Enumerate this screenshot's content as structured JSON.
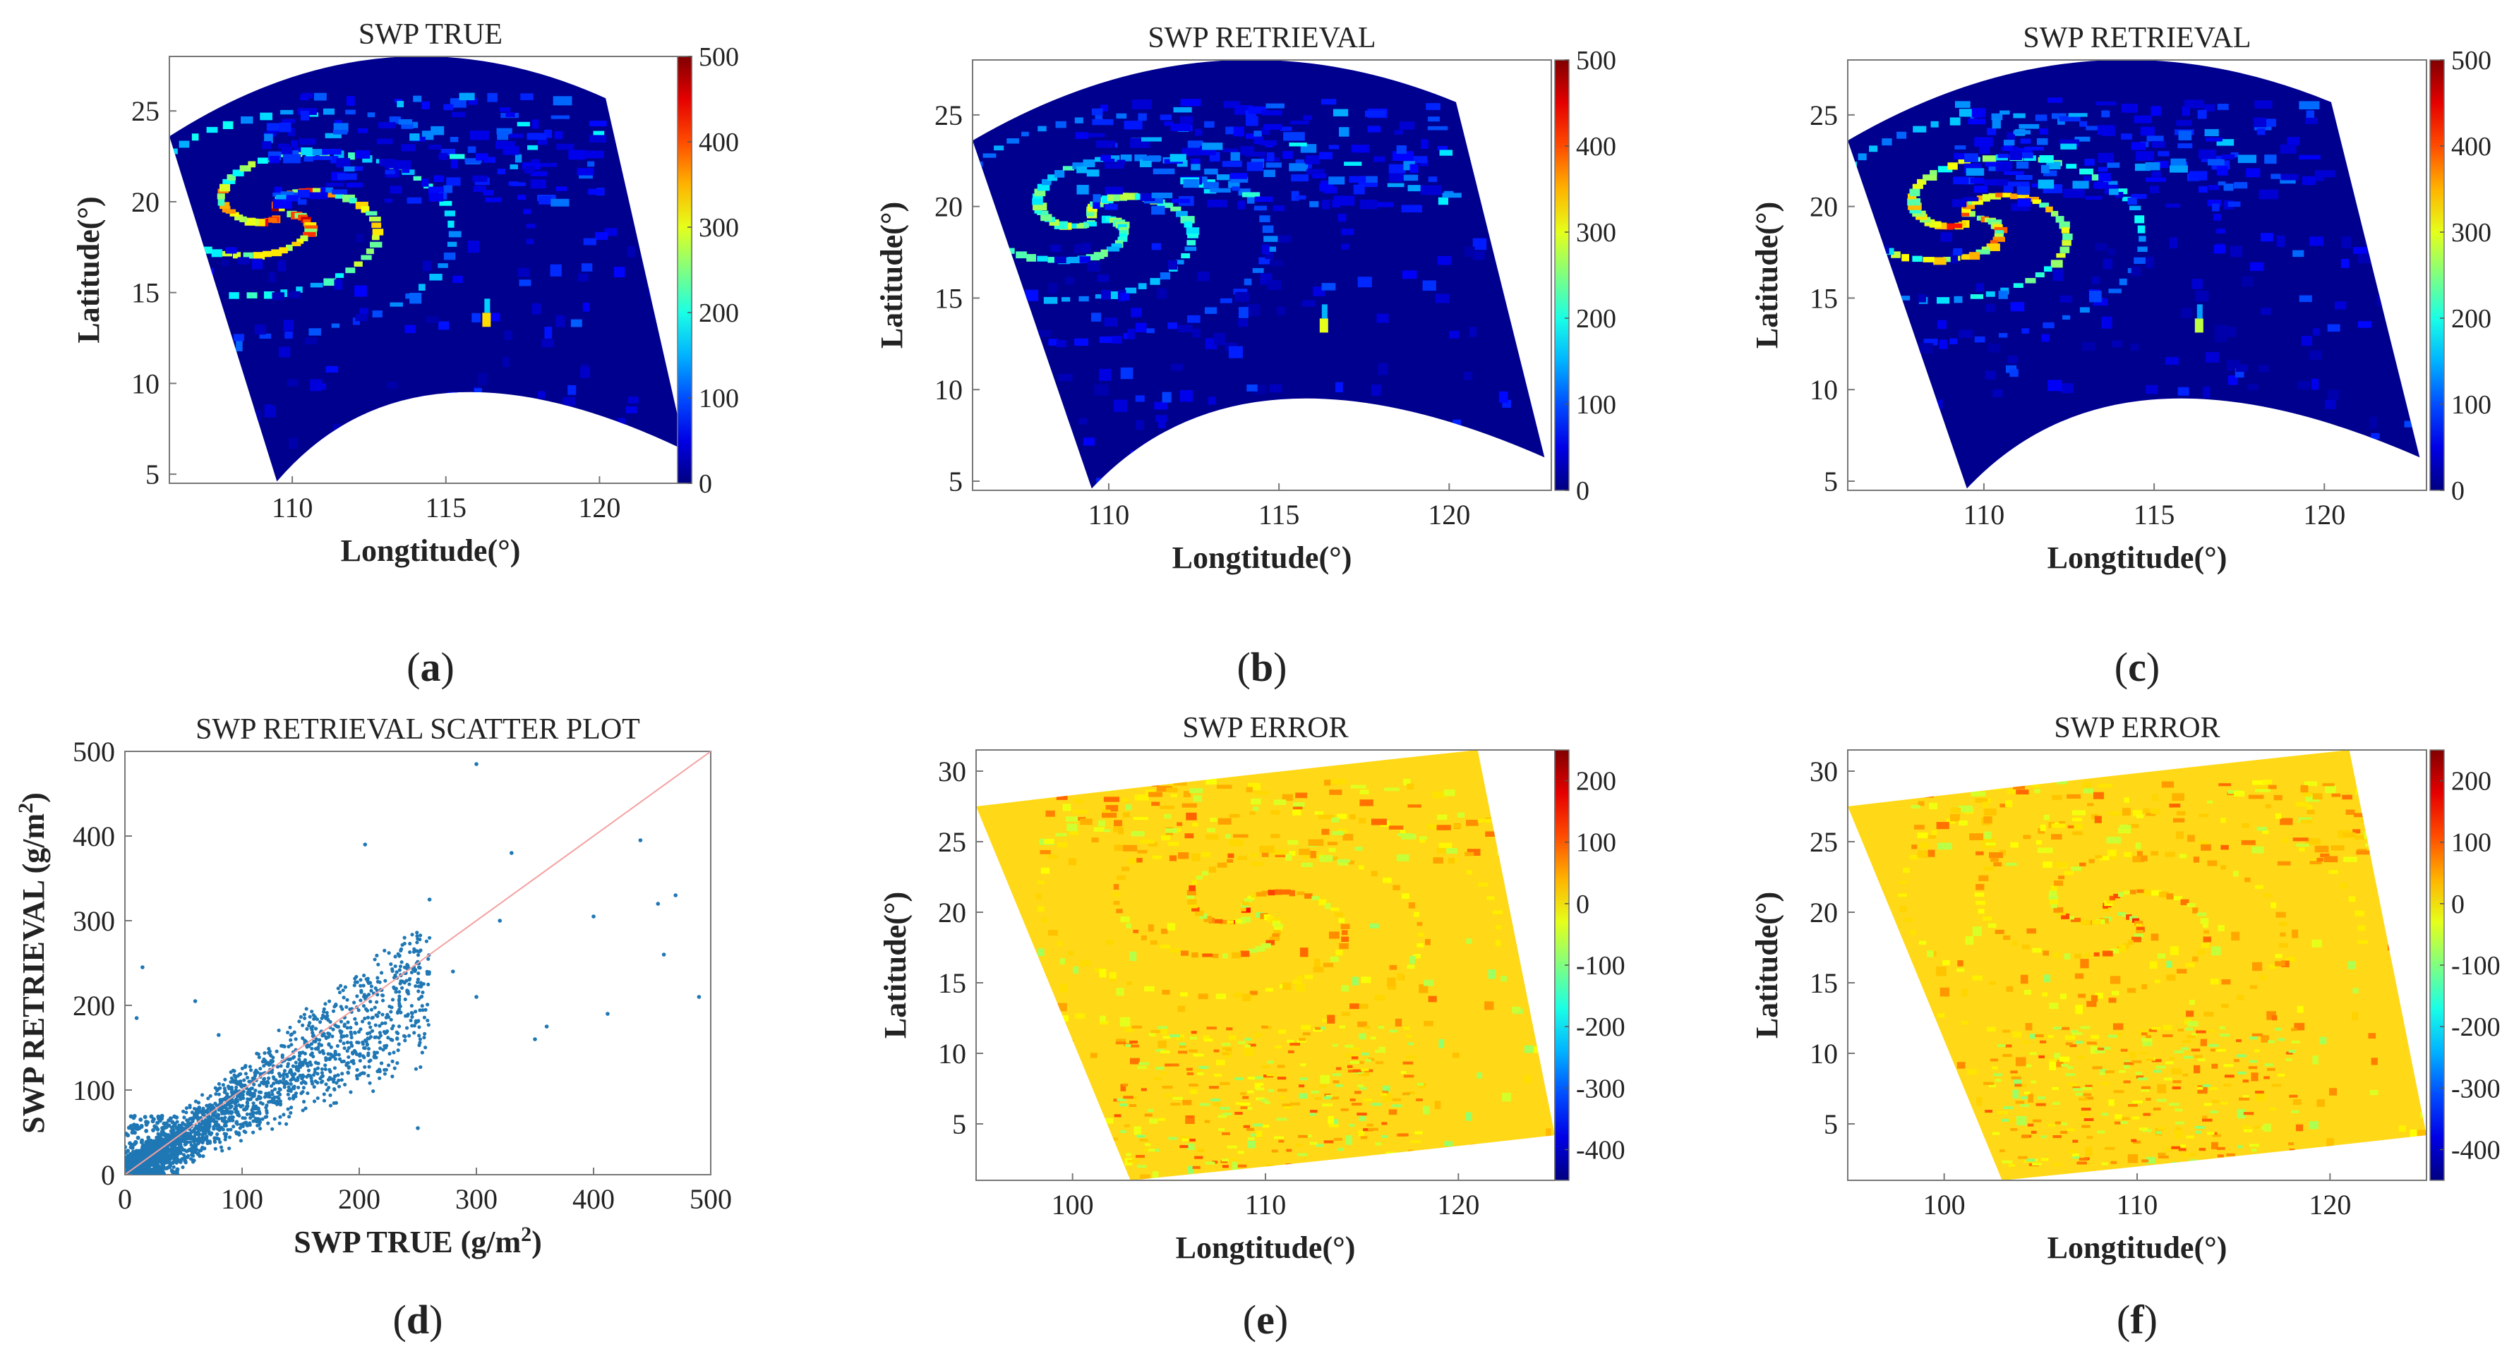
{
  "figure": {
    "panels": [
      {
        "id": "a",
        "label": "a",
        "title": "SWP TRUE",
        "type": "map",
        "xlabel": "Longtitude(°)",
        "ylabel": "Latitude(°)",
        "x_ticks": [
          110,
          115,
          120
        ],
        "y_ticks": [
          5,
          10,
          15,
          20,
          25
        ],
        "xlim": [
          106,
          123
        ],
        "ylim": [
          4.5,
          28
        ],
        "colorbar": {
          "min": 0,
          "max": 500,
          "ticks": [
            0,
            100,
            200,
            300,
            400,
            500
          ],
          "cmap": "jet"
        },
        "storm": {
          "lon": 109.5,
          "lat": 19.5,
          "peak": 460
        },
        "spot": {
          "lon": 116.3,
          "lat": 13.5,
          "value": 330
        },
        "background": "#00008f"
      },
      {
        "id": "b",
        "label": "b",
        "title": "SWP RETRIEVAL",
        "type": "map",
        "xlabel": "Longtitude(°)",
        "ylabel": "Latitude(°)",
        "x_ticks": [
          110,
          115,
          120
        ],
        "y_ticks": [
          5,
          10,
          15,
          20,
          25
        ],
        "xlim": [
          106,
          123
        ],
        "ylim": [
          4.5,
          28
        ],
        "colorbar": {
          "min": 0,
          "max": 500,
          "ticks": [
            0,
            100,
            200,
            300,
            400,
            500
          ],
          "cmap": "jet"
        },
        "storm": {
          "lon": 109.5,
          "lat": 19.5,
          "peak": 300
        },
        "spot": {
          "lon": 116.3,
          "lat": 13.5,
          "value": 300
        },
        "background": "#00008f"
      },
      {
        "id": "c",
        "label": "c",
        "title": "SWP RETRIEVAL",
        "type": "map",
        "xlabel": "Longtitude(°)",
        "ylabel": "Latitude(°)",
        "x_ticks": [
          110,
          115,
          120
        ],
        "y_ticks": [
          5,
          10,
          15,
          20,
          25
        ],
        "xlim": [
          106,
          123
        ],
        "ylim": [
          4.5,
          28
        ],
        "colorbar": {
          "min": 0,
          "max": 500,
          "ticks": [
            0,
            100,
            200,
            300,
            400,
            500
          ],
          "cmap": "jet"
        },
        "storm": {
          "lon": 109.5,
          "lat": 19.5,
          "peak": 440
        },
        "spot": {
          "lon": 116.3,
          "lat": 13.5,
          "value": 280
        },
        "background": "#00008f"
      },
      {
        "id": "d",
        "label": "d",
        "title": "SWP RETRIEVAL SCATTER PLOT",
        "type": "scatter",
        "xlabel_prefix": "SWP TRUE (g/m",
        "xlabel_sup": "2",
        "xlabel_suffix": ")",
        "ylabel_prefix": "SWP RETRIEVAL (g/m",
        "ylabel_sup": "2",
        "ylabel_suffix": ")",
        "x_ticks": [
          0,
          100,
          200,
          300,
          400,
          500
        ],
        "y_ticks": [
          0,
          100,
          200,
          300,
          400,
          500
        ],
        "xlim": [
          0,
          500
        ],
        "ylim": [
          0,
          500
        ],
        "point_color": "#1f77b4",
        "line_color": "#f4a0a0",
        "one_to_one_line": [
          [
            0,
            0
          ],
          [
            500,
            500
          ]
        ],
        "sample_points": [
          [
            300,
            485
          ],
          [
            205,
            390
          ],
          [
            330,
            380
          ],
          [
            260,
            325
          ],
          [
            440,
            395
          ],
          [
            470,
            330
          ],
          [
            455,
            320
          ],
          [
            490,
            210
          ],
          [
            460,
            260
          ],
          [
            400,
            305
          ],
          [
            360,
            175
          ],
          [
            412,
            190
          ],
          [
            250,
            55
          ],
          [
            300,
            210
          ],
          [
            350,
            160
          ],
          [
            280,
            240
          ],
          [
            230,
            220
          ],
          [
            320,
            300
          ],
          [
            15,
            245
          ],
          [
            10,
            185
          ],
          [
            60,
            205
          ],
          [
            80,
            165
          ]
        ]
      },
      {
        "id": "e",
        "label": "e",
        "title": "SWP ERROR",
        "type": "map",
        "xlabel": "Longtitude(°)",
        "ylabel": "Latitude(°)",
        "x_ticks": [
          100,
          110,
          120
        ],
        "y_ticks": [
          5,
          10,
          15,
          20,
          25,
          30
        ],
        "xlim": [
          95,
          125
        ],
        "ylim": [
          1,
          31.5
        ],
        "colorbar": {
          "min": -450,
          "max": 250,
          "ticks": [
            200,
            100,
            0,
            -100,
            -200,
            -300,
            -400
          ],
          "cmap": "jet"
        },
        "storm": {
          "lon": 109,
          "lat": 20,
          "peak": 150
        },
        "background": "#ffd817"
      },
      {
        "id": "f",
        "label": "f",
        "title": "SWP ERROR",
        "type": "map",
        "xlabel": "Longtitude(°)",
        "ylabel": "Latitude(°)",
        "x_ticks": [
          100,
          110,
          120
        ],
        "y_ticks": [
          5,
          10,
          15,
          20,
          25,
          30
        ],
        "xlim": [
          95,
          125
        ],
        "ylim": [
          1,
          31.5
        ],
        "colorbar": {
          "min": -450,
          "max": 250,
          "ticks": [
            200,
            100,
            0,
            -100,
            -200,
            -300,
            -400
          ],
          "cmap": "jet"
        },
        "storm": {
          "lon": 108.5,
          "lat": 20,
          "peak": 140
        },
        "background": "#ffd817"
      }
    ]
  },
  "chart_data": [
    {
      "type": "heatmap",
      "title": "SWP TRUE",
      "xlabel": "Longtitude(°)",
      "ylabel": "Latitude(°)",
      "xlim": [
        106,
        123
      ],
      "ylim": [
        4.5,
        28
      ],
      "colorbar_range": [
        0,
        500
      ]
    },
    {
      "type": "heatmap",
      "title": "SWP RETRIEVAL",
      "xlabel": "Longtitude(°)",
      "ylabel": "Latitude(°)",
      "xlim": [
        106,
        123
      ],
      "ylim": [
        4.5,
        28
      ],
      "colorbar_range": [
        0,
        500
      ]
    },
    {
      "type": "heatmap",
      "title": "SWP RETRIEVAL",
      "xlabel": "Longtitude(°)",
      "ylabel": "Latitude(°)",
      "xlim": [
        106,
        123
      ],
      "ylim": [
        4.5,
        28
      ],
      "colorbar_range": [
        0,
        500
      ]
    },
    {
      "type": "scatter",
      "title": "SWP RETRIEVAL SCATTER PLOT",
      "xlabel": "SWP TRUE (g/m2)",
      "ylabel": "SWP RETRIEVAL (g/m2)",
      "xlim": [
        0,
        500
      ],
      "ylim": [
        0,
        500
      ],
      "reference_line": "y = x"
    },
    {
      "type": "heatmap",
      "title": "SWP ERROR",
      "xlabel": "Longtitude(°)",
      "ylabel": "Latitude(°)",
      "xlim": [
        95,
        125
      ],
      "ylim": [
        1,
        31.5
      ],
      "colorbar_range": [
        -450,
        250
      ]
    },
    {
      "type": "heatmap",
      "title": "SWP ERROR",
      "xlabel": "Longtitude(°)",
      "ylabel": "Latitude(°)",
      "xlim": [
        95,
        125
      ],
      "ylim": [
        1,
        31.5
      ],
      "colorbar_range": [
        -450,
        250
      ]
    }
  ]
}
